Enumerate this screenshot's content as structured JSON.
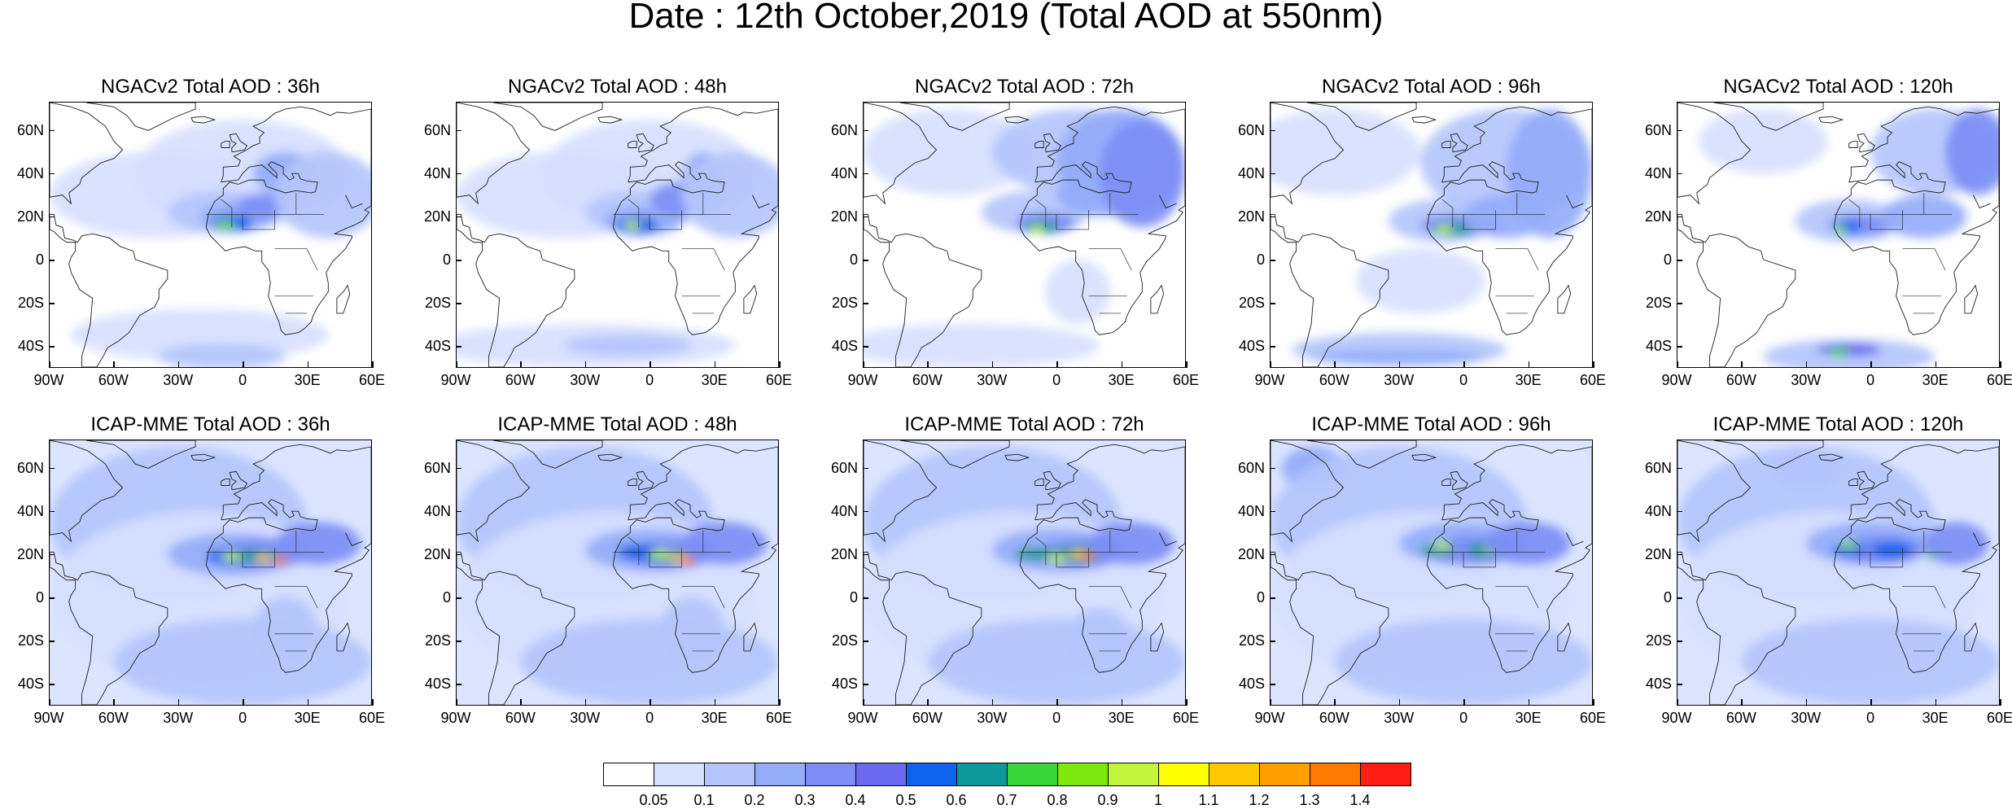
{
  "title": "Date : 12th October,2019 (Total AOD at 550nm)",
  "lat_labels": [
    "60N",
    "40N",
    "20N",
    "0",
    "20S",
    "40S"
  ],
  "lon_labels": [
    "90W",
    "60W",
    "30W",
    "0",
    "30E",
    "60E"
  ],
  "panels": [
    {
      "title": "NGACv2 Total AOD : 36h",
      "model": "NGACv2",
      "lead": "36h"
    },
    {
      "title": "NGACv2 Total AOD : 48h",
      "model": "NGACv2",
      "lead": "48h"
    },
    {
      "title": "NGACv2 Total AOD : 72h",
      "model": "NGACv2",
      "lead": "72h"
    },
    {
      "title": "NGACv2 Total AOD : 96h",
      "model": "NGACv2",
      "lead": "96h"
    },
    {
      "title": "NGACv2 Total AOD : 120h",
      "model": "NGACv2",
      "lead": "120h"
    },
    {
      "title": "ICAP-MME Total AOD : 36h",
      "model": "ICAP-MME",
      "lead": "36h"
    },
    {
      "title": "ICAP-MME Total AOD : 48h",
      "model": "ICAP-MME",
      "lead": "48h"
    },
    {
      "title": "ICAP-MME Total AOD : 72h",
      "model": "ICAP-MME",
      "lead": "72h"
    },
    {
      "title": "ICAP-MME Total AOD : 96h",
      "model": "ICAP-MME",
      "lead": "96h"
    },
    {
      "title": "ICAP-MME Total AOD : 120h",
      "model": "ICAP-MME",
      "lead": "120h"
    }
  ],
  "colorbar": {
    "labels": [
      "0.05",
      "0.1",
      "0.2",
      "0.3",
      "0.4",
      "0.5",
      "0.6",
      "0.7",
      "0.8",
      "0.9",
      "1",
      "1.1",
      "1.2",
      "1.3",
      "1.4"
    ],
    "colors": [
      "#ffffff",
      "#d6e0ff",
      "#b4c6fc",
      "#94adfa",
      "#7c8ef5",
      "#6a6aee",
      "#0f64ee",
      "#0e9a9a",
      "#38d638",
      "#7ee70e",
      "#c2f53c",
      "#ffff00",
      "#ffc800",
      "#ffa000",
      "#ff7800",
      "#ff1e14"
    ]
  }
}
